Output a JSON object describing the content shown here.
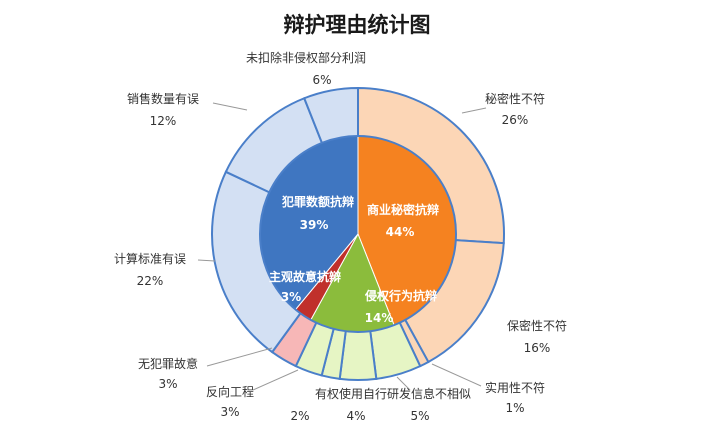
{
  "chart_data": {
    "type": "pie",
    "title": "辩护理由统计图",
    "inner": [
      {
        "name": "商业秘密抗辩",
        "value": 44,
        "pct": "44%",
        "color": "#f58220"
      },
      {
        "name": "侵权行为抗辩",
        "value": 14,
        "pct": "14%",
        "color": "#8bbc3c"
      },
      {
        "name": "主观故意抗辩",
        "value": 3,
        "pct": "3%",
        "color": "#c0302b"
      },
      {
        "name": "犯罪数额抗辩",
        "value": 39,
        "pct": "39%",
        "color": "#3f76c1"
      }
    ],
    "outer": [
      {
        "name": "秘密性不符",
        "value": 26,
        "pct": "26%",
        "group": 0,
        "color": "#fcd6b6"
      },
      {
        "name": "保密性不符",
        "value": 16,
        "pct": "16%",
        "group": 0,
        "color": "#fcd6b6"
      },
      {
        "name": "实用性不符",
        "value": 1,
        "pct": "1%",
        "group": 0,
        "color": "#fcd6b6"
      },
      {
        "name": "有权使用自行研发信息不相似",
        "value": 5,
        "pct": "5%",
        "group": 1,
        "color": "#e6f5c4"
      },
      {
        "name": "",
        "value": 4,
        "pct": "4%",
        "group": 1,
        "color": "#e6f5c4"
      },
      {
        "name": "",
        "value": 2,
        "pct": "2%",
        "group": 1,
        "color": "#e6f5c4"
      },
      {
        "name": "反向工程",
        "value": 3,
        "pct": "3%",
        "group": 1,
        "color": "#e6f5c4"
      },
      {
        "name": "无犯罪故意",
        "value": 3,
        "pct": "3%",
        "group": 2,
        "color": "#f7b7b7"
      },
      {
        "name": "计算标准有误",
        "value": 22,
        "pct": "22%",
        "group": 3,
        "color": "#d3e0f3"
      },
      {
        "name": "销售数量有误",
        "value": 12,
        "pct": "12%",
        "group": 3,
        "color": "#d3e0f3"
      },
      {
        "name": "未扣除非侵权部分利润",
        "value": 6,
        "pct": "6%",
        "group": 3,
        "color": "#d3e0f3"
      }
    ]
  }
}
